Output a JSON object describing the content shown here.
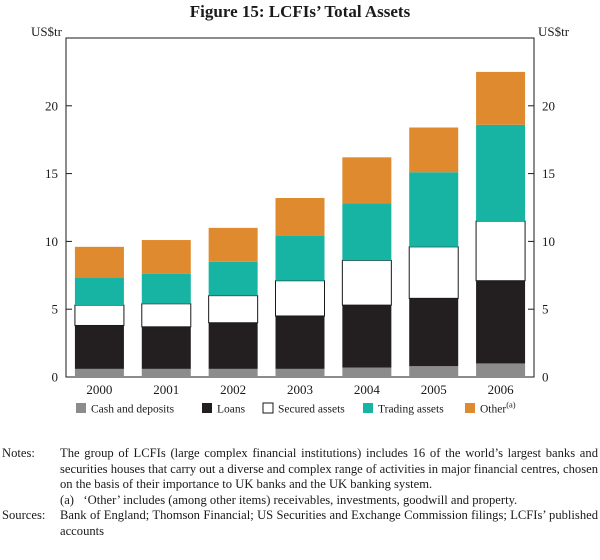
{
  "figure": {
    "title": "Figure 15: LCFIs’ Total Assets"
  },
  "chart_data": {
    "type": "bar",
    "stacked": true,
    "title": "Figure 15: LCFIs’ Total Assets",
    "ylabel_left": "US$tr",
    "ylabel_right": "US$tr",
    "ylim": [
      0,
      25
    ],
    "yticks": [
      0,
      5,
      10,
      15,
      20
    ],
    "categories": [
      "2000",
      "2001",
      "2002",
      "2003",
      "2004",
      "2005",
      "2006"
    ],
    "series": [
      {
        "name": "Cash and deposits",
        "color": "#8c8c8c",
        "values": [
          0.6,
          0.6,
          0.6,
          0.6,
          0.7,
          0.8,
          1.0
        ]
      },
      {
        "name": "Loans",
        "color": "#231f20",
        "values": [
          3.2,
          3.1,
          3.4,
          3.9,
          4.6,
          5.0,
          6.1
        ]
      },
      {
        "name": "Secured assets",
        "color": "#ffffff",
        "values": [
          1.5,
          1.7,
          2.0,
          2.6,
          3.3,
          3.8,
          4.4
        ]
      },
      {
        "name": "Trading assets",
        "color": "#17b3a3",
        "values": [
          2.0,
          2.2,
          2.5,
          3.3,
          4.2,
          5.5,
          7.1
        ]
      },
      {
        "name": "Other(a)",
        "color": "#df8a2e",
        "values": [
          2.3,
          2.5,
          2.5,
          2.8,
          3.4,
          3.3,
          3.9
        ]
      }
    ],
    "legend": {
      "position": "bottom",
      "items": [
        "Cash and deposits",
        "Loans",
        "Secured assets",
        "Trading assets",
        "Other"
      ],
      "other_superscript": "(a)"
    }
  },
  "notes": {
    "notes_label": "Notes:",
    "notes_text": "The group of LCFIs (large complex financial institutions) includes 16 of the world’s largest banks and securities houses that carry out a diverse and complex range of activities in major financial centres, chosen on the basis of their importance to UK banks and the UK banking system.",
    "footnote_a": "(a)   ‘Other’ includes (among other items) receivables, investments, goodwill and property.",
    "sources_label": "Sources:",
    "sources_text": "Bank of England; Thomson Financial; US Securities and Exchange Commission filings; LCFIs’ published accounts"
  }
}
